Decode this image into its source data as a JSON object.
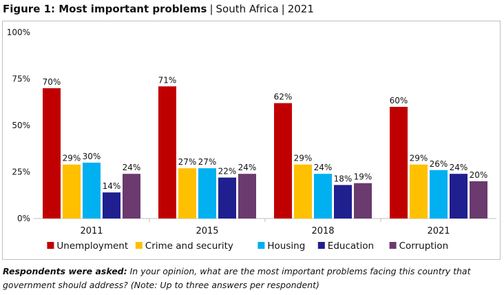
{
  "figure": {
    "label": "Figure 1: Most important problems",
    "country": "South Africa",
    "year": "2021"
  },
  "footnote": {
    "question_label": "Respondents were asked:",
    "question_text": "In your opinion, what are the most important problems facing this country that government should address? (Note: Up to three answers per respondent)"
  },
  "chart_data": {
    "type": "bar",
    "categories": [
      "2011",
      "2015",
      "2018",
      "2021"
    ],
    "series": [
      {
        "name": "Unemployment",
        "color": "#c00000",
        "values": [
          70,
          71,
          62,
          60
        ]
      },
      {
        "name": "Crime and security",
        "color": "#ffc000",
        "values": [
          29,
          27,
          29,
          29
        ]
      },
      {
        "name": "Housing",
        "color": "#00b0f0",
        "values": [
          30,
          27,
          24,
          26
        ]
      },
      {
        "name": "Education",
        "color": "#1f1f8f",
        "values": [
          14,
          22,
          18,
          24
        ]
      },
      {
        "name": "Corruption",
        "color": "#6b3a6e",
        "values": [
          24,
          24,
          19,
          20
        ]
      }
    ],
    "value_suffix": "%",
    "ylim": [
      0,
      100
    ],
    "yticks": [
      0,
      25,
      50,
      75,
      100
    ],
    "ytick_labels": [
      "0%",
      "25%",
      "50%",
      "75%",
      "100%"
    ],
    "grid": false,
    "legend_position": "bottom"
  }
}
